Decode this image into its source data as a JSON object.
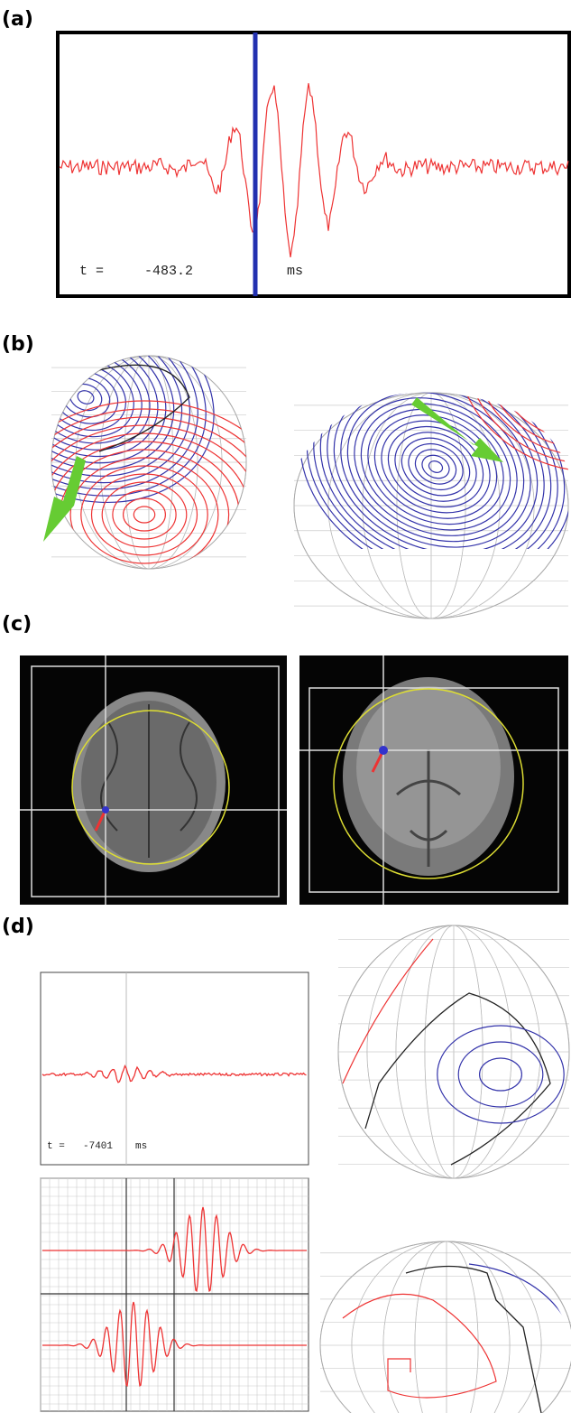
{
  "panels": [
    {
      "label": "(a)",
      "readout": {
        "symbol": "t =",
        "value": "-483.2",
        "unit": "ms"
      }
    },
    {
      "label": "(b)"
    },
    {
      "label": "(c)"
    },
    {
      "label": "(d)",
      "readout": {
        "symbol": "t =",
        "value": "-7401",
        "unit": "ms"
      }
    }
  ]
}
